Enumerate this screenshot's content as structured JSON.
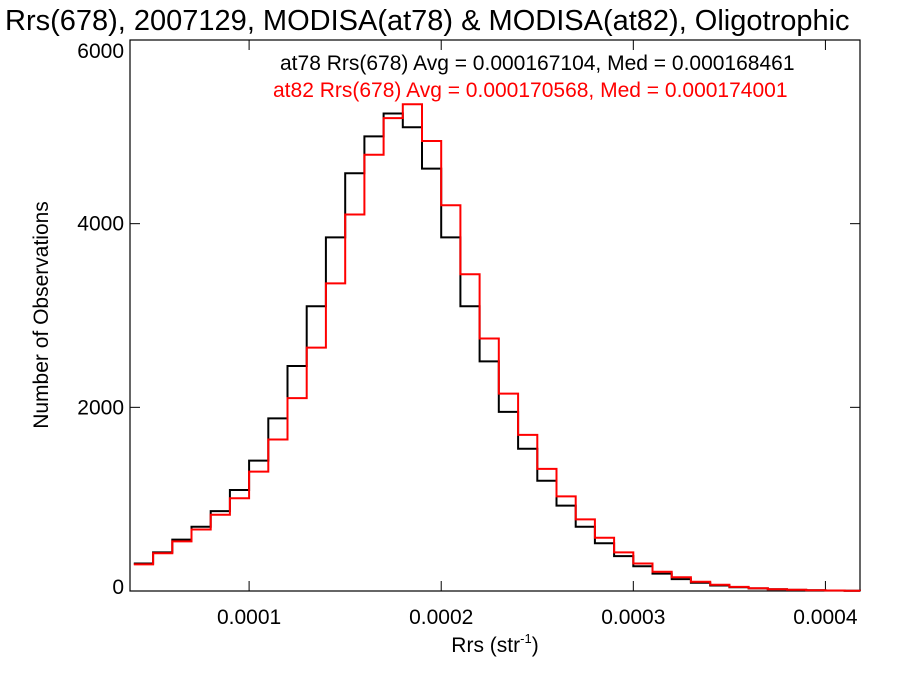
{
  "chart_data": {
    "type": "line",
    "title": "Rrs(678), 2007129, MODISA(at78) & MODISA(at82), Oligotrophic",
    "xlabel_main": "Rrs (str",
    "xlabel_sup": "-1",
    "xlabel_close": ")",
    "ylabel": "Number of Observations",
    "xlim": [
      3.8e-05,
      0.000418
    ],
    "ylim": [
      0,
      6000
    ],
    "x_ticks": [
      {
        "value": 0.0001,
        "label": "0.0001"
      },
      {
        "value": 0.0002,
        "label": "0.0002"
      },
      {
        "value": 0.0003,
        "label": "0.0003"
      },
      {
        "value": 0.0004,
        "label": "0.0004"
      }
    ],
    "y_ticks": [
      {
        "value": 0,
        "label": "0"
      },
      {
        "value": 2000,
        "label": "2000"
      },
      {
        "value": 4000,
        "label": "4000"
      },
      {
        "value": 6000,
        "label": "6000"
      }
    ],
    "legend_position": "top-right",
    "series": [
      {
        "name": "at78",
        "color": "#000000",
        "annotation": "at78 Rrs(678) Avg = 0.000167104, Med = 0.000168461",
        "x": [
          4e-05,
          5e-05,
          6e-05,
          7e-05,
          8e-05,
          9e-05,
          0.0001,
          0.00011,
          0.00012,
          0.00013,
          0.00014,
          0.00015,
          0.00016,
          0.00017,
          0.00018,
          0.00019,
          0.0002,
          0.00021,
          0.00022,
          0.00023,
          0.00024,
          0.00025,
          0.00026,
          0.00027,
          0.00028,
          0.00029,
          0.0003,
          0.00031,
          0.00032,
          0.00033,
          0.00034,
          0.00035,
          0.00036,
          0.00037,
          0.00038,
          0.00039,
          0.0004,
          0.00041,
          0.000418
        ],
        "y": [
          300,
          420,
          560,
          700,
          870,
          1100,
          1420,
          1880,
          2450,
          3100,
          3850,
          4550,
          4950,
          5200,
          5050,
          4600,
          3850,
          3100,
          2500,
          1950,
          1550,
          1200,
          930,
          700,
          520,
          380,
          270,
          190,
          130,
          90,
          60,
          40,
          28,
          18,
          12,
          8,
          5,
          3,
          2
        ]
      },
      {
        "name": "at82",
        "color": "#ff0000",
        "annotation": "at82 Rrs(678) Avg = 0.000170568, Med = 0.000174001",
        "x": [
          4e-05,
          5e-05,
          6e-05,
          7e-05,
          8e-05,
          9e-05,
          0.0001,
          0.00011,
          0.00012,
          0.00013,
          0.00014,
          0.00015,
          0.00016,
          0.00017,
          0.00018,
          0.00019,
          0.0002,
          0.00021,
          0.00022,
          0.00023,
          0.00024,
          0.00025,
          0.00026,
          0.00027,
          0.00028,
          0.00029,
          0.0003,
          0.00031,
          0.00032,
          0.00033,
          0.00034,
          0.00035,
          0.00036,
          0.00037,
          0.00038,
          0.00039,
          0.0004,
          0.00041,
          0.000418
        ],
        "y": [
          290,
          410,
          540,
          670,
          830,
          1010,
          1300,
          1650,
          2100,
          2650,
          3350,
          4100,
          4750,
          5150,
          5300,
          4900,
          4200,
          3450,
          2750,
          2150,
          1700,
          1330,
          1030,
          780,
          580,
          420,
          300,
          210,
          150,
          100,
          68,
          45,
          30,
          20,
          13,
          8,
          5,
          3,
          2
        ]
      }
    ]
  }
}
